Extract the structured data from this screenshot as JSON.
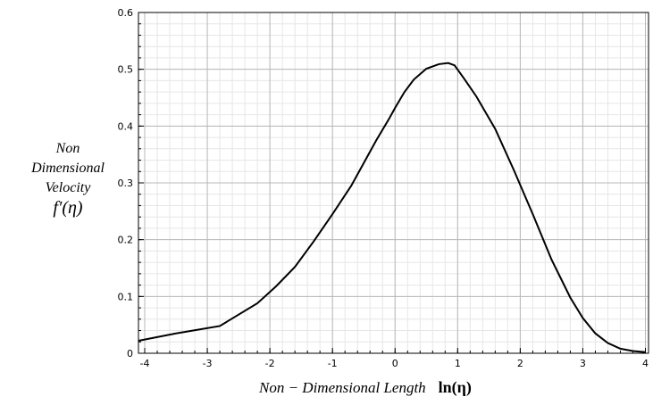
{
  "chart_data": {
    "type": "line",
    "xlabel": "Non − Dimensional Length",
    "xlabel_symbol": "ln(η)",
    "ylabel_lines": [
      "Non",
      "Dimensional",
      "Velocity"
    ],
    "ylabel_symbol": "f′(η)",
    "xlim": [
      -4.1,
      4.05
    ],
    "ylim": [
      0,
      0.6
    ],
    "x_ticks": [
      "-4",
      "-3",
      "-2",
      "-1",
      "0",
      "1",
      "2",
      "3",
      "4"
    ],
    "y_ticks": [
      "0",
      "0.1",
      "0.2",
      "0.3",
      "0.4",
      "0.5",
      "0.6"
    ],
    "grid": true,
    "line_color": "#000000",
    "series": [
      {
        "x": [
          -4.1,
          -3.5,
          -2.8,
          -2.2,
          -1.9,
          -1.6,
          -1.3,
          -1.0,
          -0.7,
          -0.5,
          -0.3,
          -0.1,
          0.0,
          0.15,
          0.3,
          0.5,
          0.7,
          0.85,
          0.95,
          1.1,
          1.3,
          1.6,
          1.9,
          2.2,
          2.5,
          2.8,
          3.0,
          3.2,
          3.4,
          3.6,
          3.8,
          4.0
        ],
        "y": [
          0.022,
          0.035,
          0.048,
          0.088,
          0.118,
          0.152,
          0.197,
          0.245,
          0.295,
          0.335,
          0.375,
          0.412,
          0.432,
          0.46,
          0.482,
          0.501,
          0.509,
          0.511,
          0.507,
          0.484,
          0.452,
          0.395,
          0.322,
          0.245,
          0.165,
          0.098,
          0.062,
          0.035,
          0.018,
          0.008,
          0.004,
          0.002
        ]
      }
    ]
  }
}
